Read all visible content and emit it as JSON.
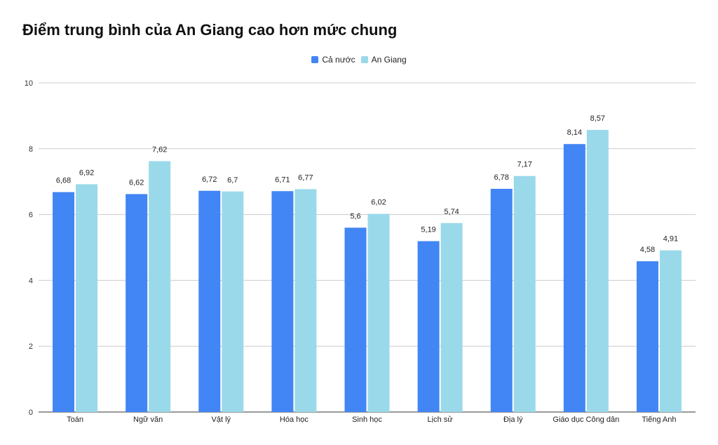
{
  "title": "Điểm trung bình của An Giang cao hơn mức chung",
  "chart_data": {
    "type": "bar",
    "title": "Điểm trung bình của An Giang cao hơn mức chung",
    "xlabel": "",
    "ylabel": "",
    "ylim": [
      0,
      10
    ],
    "yticks": [
      0,
      2,
      4,
      6,
      8,
      10
    ],
    "grid": true,
    "legend_position": "top-center",
    "categories": [
      "Toán",
      "Ngữ văn",
      "Vật lý",
      "Hóa học",
      "Sinh học",
      "Lịch sử",
      "Địa lý",
      "Giáo dục Công dân",
      "Tiếng Anh"
    ],
    "series": [
      {
        "name": "Cả nước",
        "color": "#4285f4",
        "values": [
          6.68,
          6.62,
          6.72,
          6.71,
          5.6,
          5.19,
          6.78,
          8.14,
          4.58
        ],
        "labels": [
          "6,68",
          "6,62",
          "6,72",
          "6,71",
          "5,6",
          "5,19",
          "6,78",
          "8,14",
          "4,58"
        ]
      },
      {
        "name": "An Giang",
        "color": "#9ad9ea",
        "values": [
          6.92,
          7.62,
          6.7,
          6.77,
          6.02,
          5.74,
          7.17,
          8.57,
          4.91
        ],
        "labels": [
          "6,92",
          "7,62",
          "6,7",
          "6,77",
          "6,02",
          "5,74",
          "7,17",
          "8,57",
          "4,91"
        ]
      }
    ]
  }
}
